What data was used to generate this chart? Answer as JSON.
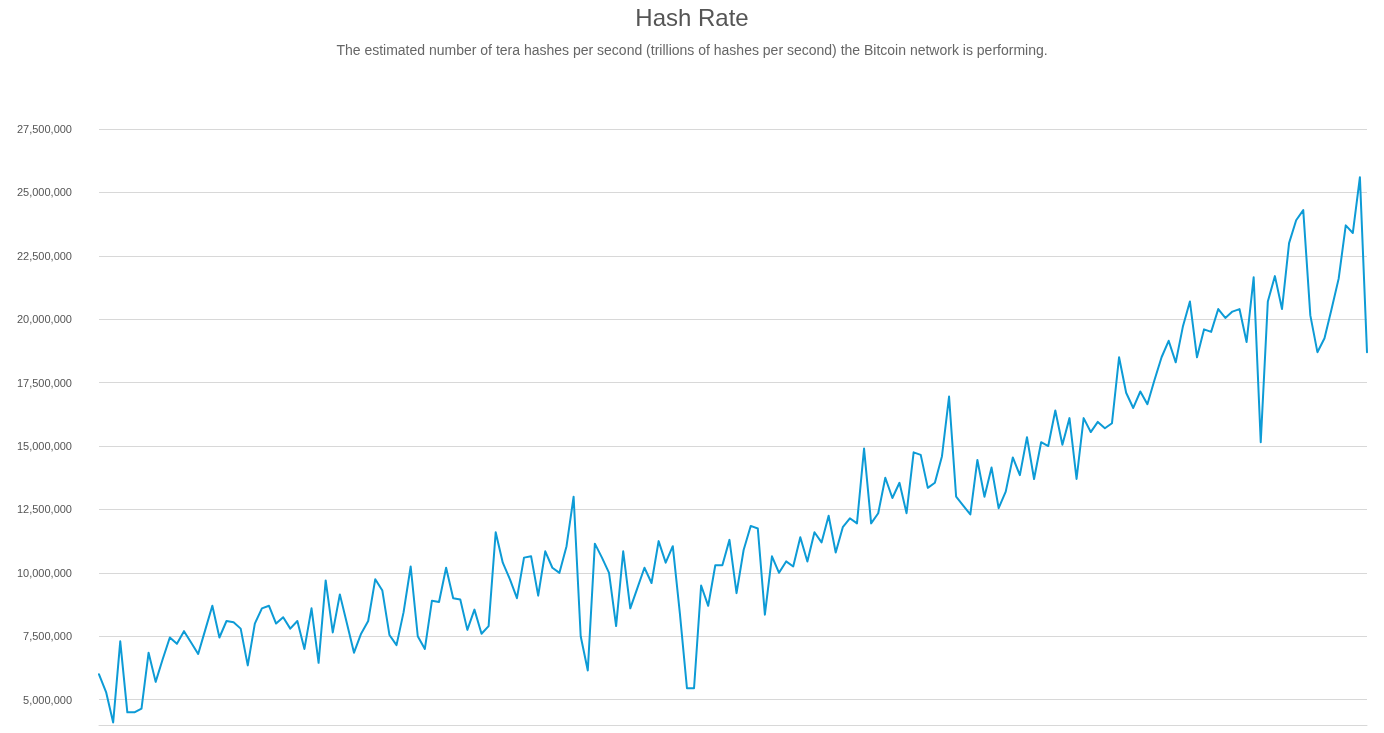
{
  "chart_data": {
    "type": "line",
    "title": "Hash Rate",
    "subtitle": "The estimated number of tera hashes per second (trillions of hashes per second) the Bitcoin network is performing.",
    "categories": [
      null,
      null,
      null,
      null,
      null,
      null,
      null,
      null,
      null,
      null,
      null,
      null,
      null,
      null,
      null,
      null,
      null,
      null,
      null,
      null,
      null,
      null,
      null,
      null,
      null,
      null,
      null,
      null,
      null,
      null,
      null,
      null,
      null,
      null,
      null,
      null,
      null,
      null,
      null,
      null,
      null,
      null,
      null,
      null,
      null,
      null,
      null,
      null,
      null,
      null,
      null,
      null,
      null,
      null,
      null,
      null,
      null,
      null,
      null,
      null,
      null,
      null,
      null,
      null,
      null,
      null,
      null,
      null,
      null,
      null,
      null,
      null,
      null,
      null,
      null,
      null,
      null,
      null,
      null,
      null,
      null,
      null,
      null,
      null,
      null,
      null,
      null,
      null,
      null,
      null,
      null,
      null,
      null,
      null,
      null,
      null,
      null,
      null,
      null,
      null,
      null,
      null,
      null,
      null,
      null,
      null,
      null,
      null,
      null,
      null,
      null,
      null,
      null,
      null,
      null,
      null,
      null,
      null,
      null,
      null,
      null,
      null,
      null,
      null,
      null,
      null,
      null,
      null,
      null,
      null,
      null,
      null,
      null,
      null,
      null,
      null,
      null,
      null,
      null,
      null,
      null,
      null,
      null,
      null,
      null,
      null,
      null,
      null,
      null,
      null,
      null,
      null,
      null,
      null,
      null,
      null,
      null,
      null,
      null,
      null,
      null,
      null,
      null,
      null,
      null,
      null,
      null,
      null,
      null,
      null,
      null,
      null,
      null,
      null,
      null,
      null,
      null,
      null,
      null,
      null
    ],
    "series": [
      {
        "color": "#0d9bd6",
        "values": [
          6000000,
          5300000,
          4100000,
          7300000,
          4500000,
          4500000,
          4650000,
          6850000,
          5700000,
          6600000,
          7450000,
          7200000,
          7700000,
          7250000,
          6800000,
          7750000,
          8700000,
          7450000,
          8100000,
          8050000,
          7800000,
          6350000,
          8000000,
          8600000,
          8700000,
          8000000,
          8250000,
          7800000,
          8100000,
          7000000,
          8600000,
          6450000,
          9700000,
          7650000,
          9150000,
          8000000,
          6850000,
          7600000,
          8100000,
          9750000,
          9300000,
          7550000,
          7150000,
          8450000,
          10250000,
          7500000,
          7000000,
          8900000,
          8850000,
          10200000,
          9000000,
          8950000,
          7750000,
          8550000,
          7600000,
          7900000,
          11600000,
          10400000,
          9750000,
          9000000,
          10600000,
          10650000,
          9100000,
          10850000,
          10200000,
          10000000,
          11050000,
          13000000,
          7500000,
          6150000,
          11150000,
          10600000,
          10000000,
          7900000,
          10850000,
          8600000,
          9400000,
          10200000,
          9600000,
          11250000,
          10400000,
          11050000,
          8400000,
          5450000,
          5450000,
          9500000,
          8700000,
          10300000,
          10300000,
          11300000,
          9200000,
          10900000,
          11850000,
          11750000,
          8350000,
          10650000,
          10000000,
          10450000,
          10250000,
          11400000,
          10450000,
          11600000,
          11200000,
          12250000,
          10800000,
          11800000,
          12150000,
          11950000,
          14900000,
          11950000,
          12350000,
          13750000,
          12950000,
          13550000,
          12350000,
          14750000,
          14650000,
          13350000,
          13550000,
          14600000,
          16950000,
          13000000,
          12650000,
          12300000,
          14450000,
          13000000,
          14150000,
          12550000,
          13200000,
          14550000,
          13850000,
          15350000,
          13700000,
          15150000,
          15000000,
          16400000,
          15050000,
          16100000,
          13700000,
          16100000,
          15550000,
          15950000,
          15700000,
          15900000,
          18500000,
          17100000,
          16500000,
          17150000,
          16650000,
          17600000,
          18500000,
          19150000,
          18300000,
          19700000,
          20700000,
          18500000,
          19600000,
          19500000,
          20400000,
          20050000,
          20300000,
          20400000,
          19100000,
          21650000,
          15150000,
          20700000,
          21700000,
          20400000,
          23000000,
          23900000,
          24300000,
          20150000,
          18700000,
          19250000,
          20400000,
          21600000,
          23700000,
          23400000,
          25600000,
          18700000
        ]
      }
    ],
    "ylim": [
      4000000,
      27500000
    ],
    "yticks": [
      {
        "value": 5000000,
        "label": "5,000,000"
      },
      {
        "value": 7500000,
        "label": "7,500,000"
      },
      {
        "value": 10000000,
        "label": "10,000,000"
      },
      {
        "value": 12500000,
        "label": "12,500,000"
      },
      {
        "value": 15000000,
        "label": "15,000,000"
      },
      {
        "value": 17500000,
        "label": "17,500,000"
      },
      {
        "value": 20000000,
        "label": "20,000,000"
      },
      {
        "value": 22500000,
        "label": "22,500,000"
      },
      {
        "value": 25000000,
        "label": "25,000,000"
      },
      {
        "value": 27500000,
        "label": "27,500,000"
      }
    ],
    "grid": "y",
    "line_style": "solid",
    "tick_labels": "y"
  }
}
